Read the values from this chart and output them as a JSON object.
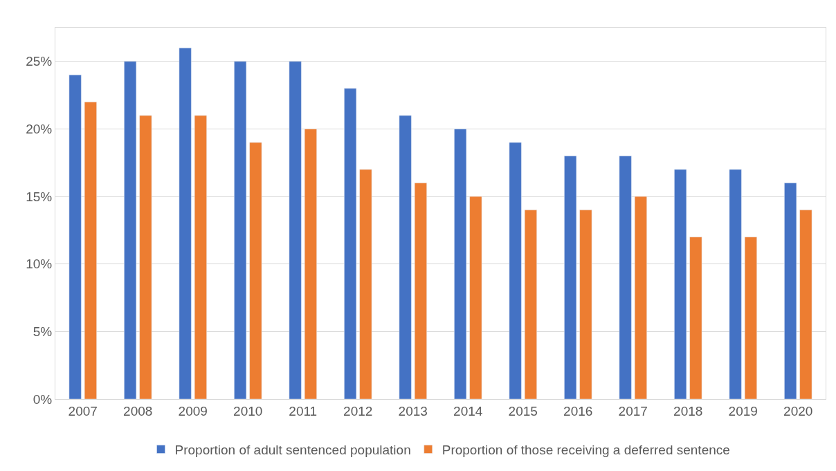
{
  "chart_data": {
    "type": "bar",
    "categories": [
      "2007",
      "2008",
      "2009",
      "2010",
      "2011",
      "2012",
      "2013",
      "2014",
      "2015",
      "2016",
      "2017",
      "2018",
      "2019",
      "2020"
    ],
    "series": [
      {
        "name": "Proportion of adult sentenced population",
        "color": "#4472c4",
        "values": [
          24,
          25,
          26,
          25,
          25,
          23,
          21,
          20,
          19,
          18,
          18,
          17,
          17,
          16
        ]
      },
      {
        "name": "Proportion of those receiving a deferred sentence",
        "color": "#ed7d31",
        "values": [
          22,
          21,
          21,
          19,
          20,
          17,
          16,
          15,
          14,
          14,
          15,
          12,
          12,
          14
        ]
      }
    ],
    "ylim": [
      0,
      27.5
    ],
    "yticks": [
      {
        "value": 0,
        "label": "0%"
      },
      {
        "value": 5,
        "label": "5%"
      },
      {
        "value": 10,
        "label": "10%"
      },
      {
        "value": 15,
        "label": "15%"
      },
      {
        "value": 20,
        "label": "20%"
      },
      {
        "value": 25,
        "label": "25%"
      }
    ],
    "grid": "y",
    "legend": "bottom"
  }
}
